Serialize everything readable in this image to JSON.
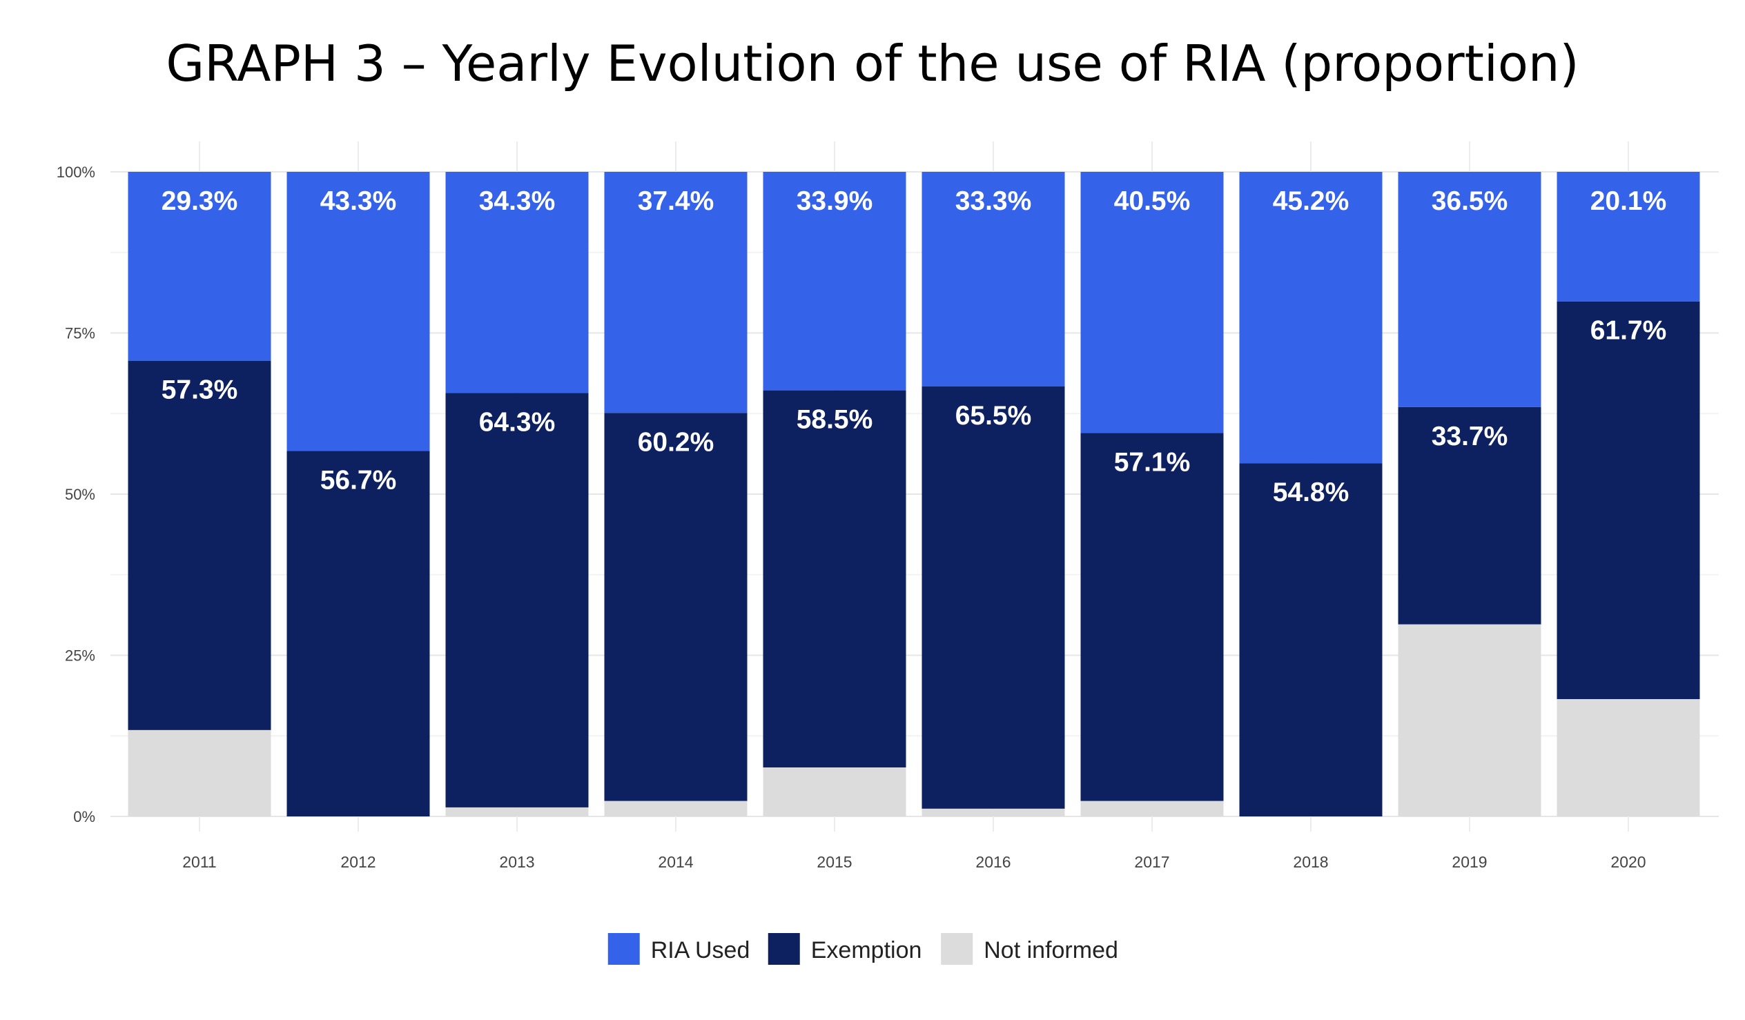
{
  "chart_data": {
    "type": "bar",
    "stacked": true,
    "title": "GRAPH 3 – Yearly Evolution of the use of RIA (proportion)",
    "xlabel": "",
    "ylabel": "",
    "ylim": [
      0,
      100
    ],
    "y_ticks": [
      "0%",
      "25%",
      "50%",
      "75%",
      "100%"
    ],
    "grid": true,
    "legend_position": "bottom",
    "categories": [
      "2011",
      "2012",
      "2013",
      "2014",
      "2015",
      "2016",
      "2017",
      "2018",
      "2019",
      "2020"
    ],
    "series": [
      {
        "name": "Not informed",
        "color": "#dcdcdc",
        "values": [
          13.4,
          0.0,
          1.4,
          2.4,
          7.6,
          1.2,
          2.4,
          0.0,
          29.8,
          18.2
        ],
        "labels": [
          "",
          "",
          "",
          "",
          "",
          "",
          "",
          "",
          "",
          ""
        ]
      },
      {
        "name": "Exemption",
        "color": "#0d2161",
        "values": [
          57.3,
          56.7,
          64.3,
          60.2,
          58.5,
          65.5,
          57.1,
          54.8,
          33.7,
          61.7
        ],
        "labels": [
          "57.3%",
          "56.7%",
          "64.3%",
          "60.2%",
          "58.5%",
          "65.5%",
          "57.1%",
          "54.8%",
          "33.7%",
          "61.7%"
        ]
      },
      {
        "name": "RIA Used",
        "color": "#3462e8",
        "values": [
          29.3,
          43.3,
          34.3,
          37.4,
          33.9,
          33.3,
          40.5,
          45.2,
          36.5,
          20.1
        ],
        "labels": [
          "29.3%",
          "43.3%",
          "34.3%",
          "37.4%",
          "33.9%",
          "33.3%",
          "40.5%",
          "45.2%",
          "36.5%",
          "20.1%"
        ]
      }
    ],
    "legend_order": [
      "RIA Used",
      "Exemption",
      "Not informed"
    ]
  }
}
